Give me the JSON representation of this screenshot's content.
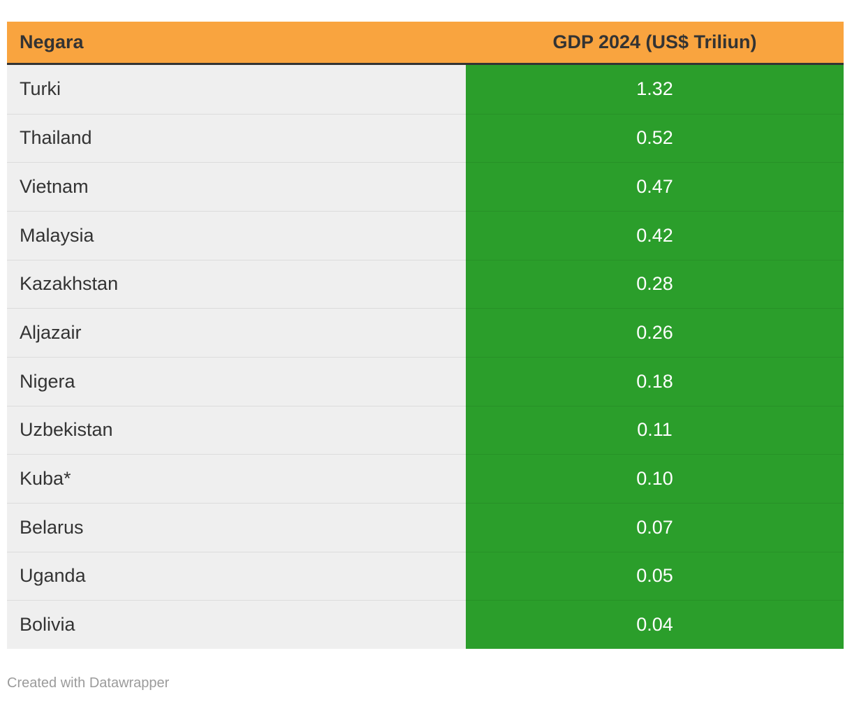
{
  "chart_data": {
    "type": "table",
    "title": "",
    "columns": [
      "Negara",
      "GDP 2024 (US$ Triliun)"
    ],
    "categories": [
      "Turki",
      "Thailand",
      "Vietnam",
      "Malaysia",
      "Kazakhstan",
      "Aljazair",
      "Nigera",
      "Uzbekistan",
      "Kuba*",
      "Belarus",
      "Uganda",
      "Bolivia"
    ],
    "values": [
      1.32,
      0.52,
      0.47,
      0.42,
      0.28,
      0.26,
      0.18,
      0.11,
      0.1,
      0.07,
      0.05,
      0.04
    ]
  },
  "table": {
    "header": {
      "country_label": "Negara",
      "value_label": "GDP 2024 (US$ Triliun)"
    },
    "rows": [
      {
        "country": "Turki",
        "value": "1.32"
      },
      {
        "country": "Thailand",
        "value": "0.52"
      },
      {
        "country": "Vietnam",
        "value": "0.47"
      },
      {
        "country": "Malaysia",
        "value": "0.42"
      },
      {
        "country": "Kazakhstan",
        "value": "0.28"
      },
      {
        "country": "Aljazair",
        "value": "0.26"
      },
      {
        "country": "Nigera",
        "value": "0.18"
      },
      {
        "country": "Uzbekistan",
        "value": "0.11"
      },
      {
        "country": "Kuba*",
        "value": "0.10"
      },
      {
        "country": "Belarus",
        "value": "0.07"
      },
      {
        "country": "Uganda",
        "value": "0.05"
      },
      {
        "country": "Bolivia",
        "value": "0.04"
      }
    ]
  },
  "footer": {
    "credit": "Created with Datawrapper"
  },
  "colors": {
    "header_background": "#f9a43f",
    "value_cell_background": "#2b9e2b",
    "country_cell_background": "#efefef",
    "header_bottom_border": "#333333",
    "label_text": "#333333",
    "value_text": "#ffffff",
    "footer_text": "#9b9b9b"
  }
}
